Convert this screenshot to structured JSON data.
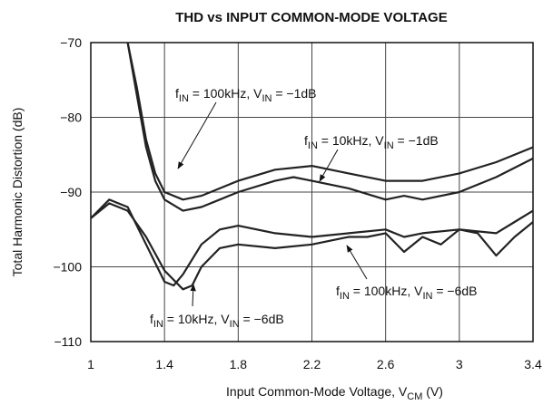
{
  "chart_data": {
    "type": "line",
    "title": "THD vs INPUT COMMON-MODE VOLTAGE",
    "xlabel": [
      {
        "text": "Input Common-Mode Voltage, V"
      },
      {
        "sub": "CM"
      },
      {
        "text": " (V)"
      }
    ],
    "ylabel": "Total Harmonic Distortion (dB)",
    "xlim": [
      1,
      3.4
    ],
    "xticks": [
      1,
      1.4,
      1.8,
      2.2,
      2.6,
      3,
      3.4
    ],
    "ylim": [
      -110,
      -70
    ],
    "yticks": [
      {
        "value": -70,
        "label": "−70"
      },
      {
        "value": -80,
        "label": "−80"
      },
      {
        "value": -90,
        "label": "−90"
      },
      {
        "value": -100,
        "label": "−100"
      },
      {
        "value": -110,
        "label": "−110"
      }
    ],
    "grid": true,
    "series": [
      {
        "color": "#222222",
        "label": [
          {
            "text": "f"
          },
          {
            "sub": "IN"
          },
          {
            "text": " = 100kHz, V"
          },
          {
            "sub": "IN"
          },
          {
            "text": " = −1dB"
          }
        ],
        "x": [
          1.2,
          1.25,
          1.3,
          1.35,
          1.4,
          1.5,
          1.6,
          1.8,
          2.0,
          2.2,
          2.4,
          2.6,
          2.8,
          3.0,
          3.2,
          3.4
        ],
        "values": [
          -70,
          -76,
          -83,
          -87.5,
          -90,
          -91,
          -90.5,
          -88.5,
          -87,
          -86.5,
          -87.5,
          -88.5,
          -88.5,
          -87.5,
          -86,
          -84
        ]
      },
      {
        "color": "#222222",
        "label": [
          {
            "text": "f"
          },
          {
            "sub": "IN"
          },
          {
            "text": " = 10kHz, V"
          },
          {
            "sub": "IN"
          },
          {
            "text": " = −1dB"
          }
        ],
        "x": [
          1.2,
          1.25,
          1.3,
          1.35,
          1.4,
          1.5,
          1.6,
          1.7,
          1.8,
          2.0,
          2.1,
          2.2,
          2.4,
          2.6,
          2.7,
          2.8,
          3.0,
          3.2,
          3.4
        ],
        "values": [
          -70,
          -77,
          -84,
          -88.5,
          -91,
          -92.5,
          -92,
          -91,
          -90,
          -88.5,
          -88,
          -88.5,
          -89.5,
          -91,
          -90.5,
          -91,
          -90,
          -88,
          -85.5
        ]
      },
      {
        "color": "#222222",
        "label": [
          {
            "text": "f"
          },
          {
            "sub": "IN"
          },
          {
            "text": " = 100kHz, V"
          },
          {
            "sub": "IN"
          },
          {
            "text": " = −6dB"
          }
        ],
        "x": [
          1,
          1.1,
          1.2,
          1.3,
          1.4,
          1.45,
          1.5,
          1.6,
          1.7,
          1.8,
          2.0,
          2.2,
          2.4,
          2.6,
          2.7,
          2.8,
          3.0,
          3.2,
          3.3,
          3.4
        ],
        "values": [
          -93.5,
          -91,
          -92,
          -97,
          -102,
          -102.5,
          -101,
          -97,
          -95,
          -94.5,
          -95.5,
          -96,
          -95.5,
          -95,
          -96,
          -95.5,
          -95,
          -95.5,
          -94,
          -92.5
        ]
      },
      {
        "color": "#222222",
        "label": [
          {
            "text": "f"
          },
          {
            "sub": "IN"
          },
          {
            "text": " = 10kHz, V"
          },
          {
            "sub": "IN"
          },
          {
            "text": " = −6dB"
          }
        ],
        "x": [
          1,
          1.1,
          1.2,
          1.3,
          1.4,
          1.5,
          1.55,
          1.6,
          1.7,
          1.8,
          2.0,
          2.2,
          2.4,
          2.5,
          2.6,
          2.7,
          2.8,
          2.9,
          3.0,
          3.1,
          3.2,
          3.3,
          3.4
        ],
        "values": [
          -93.5,
          -91.5,
          -92.5,
          -96,
          -100.5,
          -103,
          -102.5,
          -100,
          -97.5,
          -97,
          -97.5,
          -97,
          -96,
          -96,
          -95.5,
          -98,
          -96,
          -97,
          -95,
          -95.5,
          -98.5,
          -96,
          -94
        ]
      }
    ]
  }
}
